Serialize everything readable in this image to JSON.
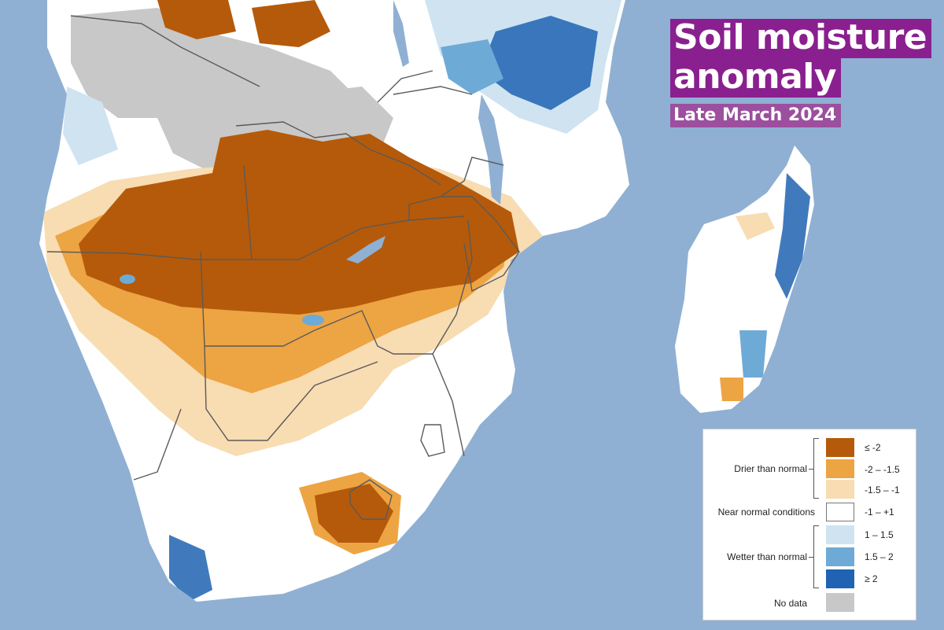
{
  "title": {
    "line1": "Soil moisture",
    "line2": "anomaly",
    "subtitle": "Late March 2024"
  },
  "legend": {
    "groups": {
      "drier": "Drier than normal",
      "near": "Near normal conditions",
      "wetter": "Wetter than normal",
      "nodata": "No data"
    },
    "classes": [
      {
        "label": "≤ -2",
        "color": "#b55a0a"
      },
      {
        "label": "-2 – -1.5",
        "color": "#eda443"
      },
      {
        "label": "-1.5 – -1",
        "color": "#f8dcb2"
      },
      {
        "label": "-1 – +1",
        "color": "#ffffff"
      },
      {
        "label": "1 – 1.5",
        "color": "#cfe3f1"
      },
      {
        "label": "1.5 – 2",
        "color": "#6eaad6"
      },
      {
        "label": "≥ 2",
        "color": "#1f63b2"
      },
      {
        "label": "",
        "color": "#c8c8c8"
      }
    ]
  },
  "colors": {
    "ocean": "#8fb0d3",
    "land": "#ffffff",
    "border": "#5a5a5a",
    "lake": "#8fb0d3",
    "title_bg": "#8a1f8f",
    "subtitle_bg": "#9b4f9e"
  }
}
